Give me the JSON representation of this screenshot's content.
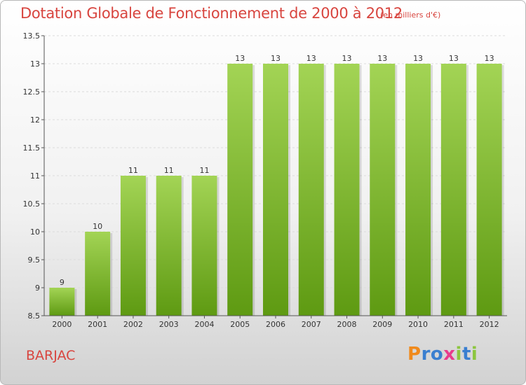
{
  "header": {
    "title": "Dotation Globale de Fonctionnement de 2000 à 2012",
    "unit": "(en milliers d'€)"
  },
  "footer": {
    "place": "BARJAC",
    "logo": {
      "letters": [
        "P",
        "r",
        "o",
        "x",
        "i",
        "t",
        "i"
      ],
      "colors": [
        "#f08a1c",
        "#3a7fd0",
        "#3a7fd0",
        "#e83c8c",
        "#8cc63f",
        "#3a7fd0",
        "#8cc63f"
      ]
    }
  },
  "colors": {
    "bar_top": "#a3d455",
    "bar_bottom": "#5e9a12",
    "title": "#d8453f"
  },
  "chart_data": {
    "type": "bar",
    "title": "Dotation Globale de Fonctionnement de 2000 à 2012",
    "subtitle": "(en milliers d'€)",
    "xlabel": "",
    "ylabel": "",
    "ylim": [
      8.5,
      13.5
    ],
    "yticks": [
      8.5,
      9,
      9.5,
      10,
      10.5,
      11,
      11.5,
      12,
      12.5,
      13,
      13.5
    ],
    "ytick_labels": [
      "8.5",
      "9",
      "9.5",
      "10",
      "10.5",
      "11",
      "11.5",
      "12",
      "12.5",
      "13",
      "13.5"
    ],
    "grid": true,
    "categories": [
      "2000",
      "2001",
      "2002",
      "2003",
      "2004",
      "2005",
      "2006",
      "2007",
      "2008",
      "2009",
      "2010",
      "2011",
      "2012"
    ],
    "values": [
      9,
      10,
      11,
      11,
      11,
      13,
      13,
      13,
      13,
      13,
      13,
      13,
      13
    ],
    "data_labels": [
      "9",
      "10",
      "11",
      "11",
      "11",
      "13",
      "13",
      "13",
      "13",
      "13",
      "13",
      "13",
      "13"
    ]
  }
}
